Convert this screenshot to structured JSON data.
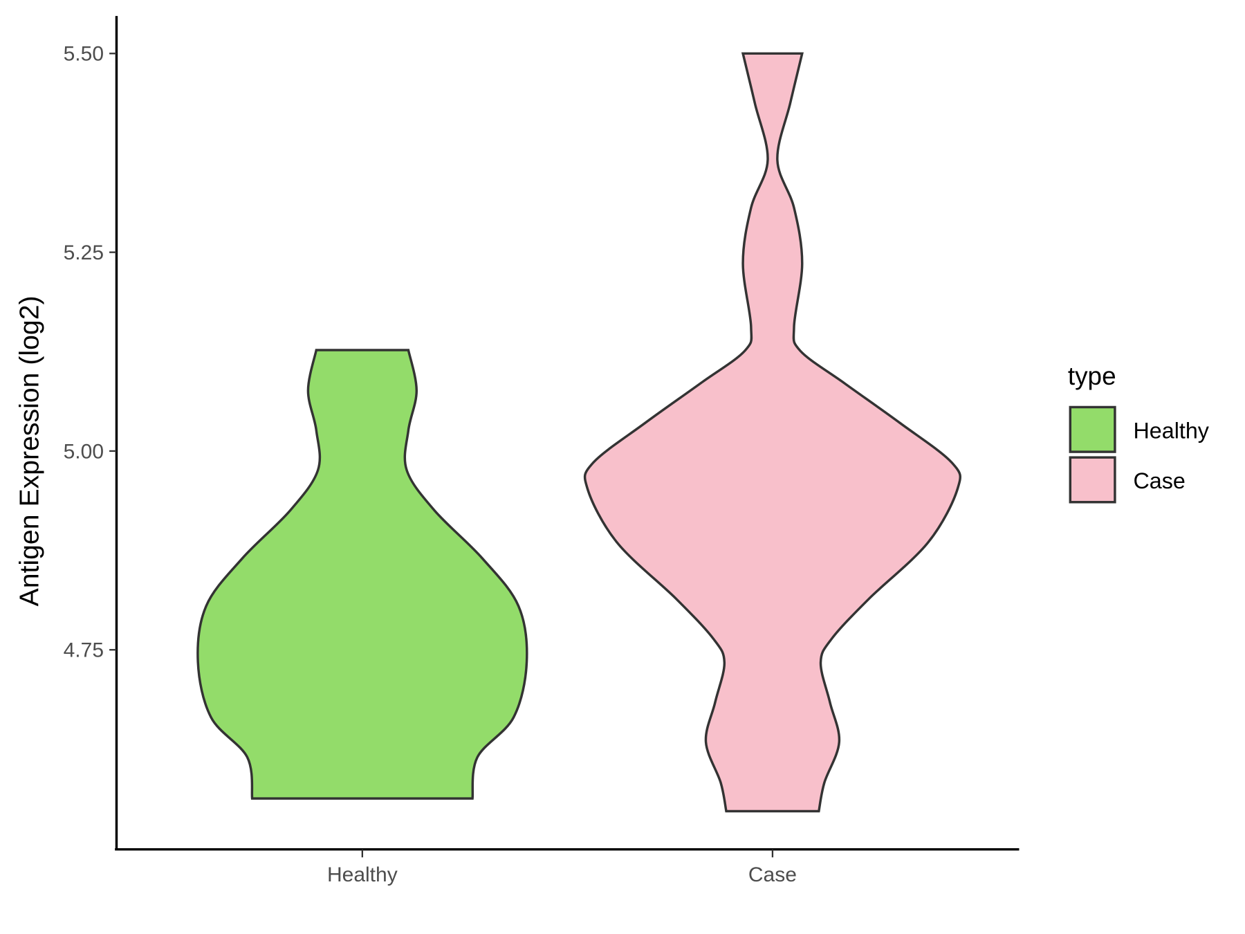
{
  "chart_data": {
    "type": "violin",
    "title": "",
    "xlabel": "",
    "ylabel": "Antigen Expression (log2)",
    "categories": [
      "Healthy",
      "Case"
    ],
    "ylim": [
      4.501,
      5.547
    ],
    "yticks": [
      4.75,
      5.0,
      5.25,
      5.5
    ],
    "ytick_labels": [
      "4.75",
      "5.00",
      "5.25",
      "5.50"
    ],
    "grid": false,
    "legend": {
      "title": "type",
      "position": "right",
      "entries": [
        "Healthy",
        "Case"
      ]
    },
    "colors": {
      "Healthy": "#93DC6A",
      "Case": "#F8C0CB",
      "outline": "#333333"
    },
    "series": [
      {
        "name": "Healthy",
        "range": [
          4.563,
          5.127
        ],
        "profile": [
          [
            5.127,
            0.28
          ],
          [
            5.076,
            0.33
          ],
          [
            5.026,
            0.28
          ],
          [
            4.976,
            0.27
          ],
          [
            4.925,
            0.44
          ],
          [
            4.865,
            0.73
          ],
          [
            4.805,
            0.95
          ],
          [
            4.735,
            1.0
          ],
          [
            4.665,
            0.92
          ],
          [
            4.615,
            0.7
          ],
          [
            4.563,
            0.67
          ]
        ]
      },
      {
        "name": "Case",
        "range": [
          4.547,
          5.5
        ],
        "profile": [
          [
            5.5,
            0.16
          ],
          [
            5.437,
            0.095
          ],
          [
            5.366,
            0.026
          ],
          [
            5.306,
            0.116
          ],
          [
            5.236,
            0.16
          ],
          [
            5.156,
            0.116
          ],
          [
            5.126,
            0.15
          ],
          [
            5.085,
            0.39
          ],
          [
            5.035,
            0.69
          ],
          [
            4.985,
            0.97
          ],
          [
            4.953,
            1.0
          ],
          [
            4.885,
            0.84
          ],
          [
            4.814,
            0.52
          ],
          [
            4.764,
            0.32
          ],
          [
            4.734,
            0.26
          ],
          [
            4.684,
            0.31
          ],
          [
            4.634,
            0.36
          ],
          [
            4.583,
            0.28
          ],
          [
            4.547,
            0.25
          ]
        ]
      }
    ]
  }
}
